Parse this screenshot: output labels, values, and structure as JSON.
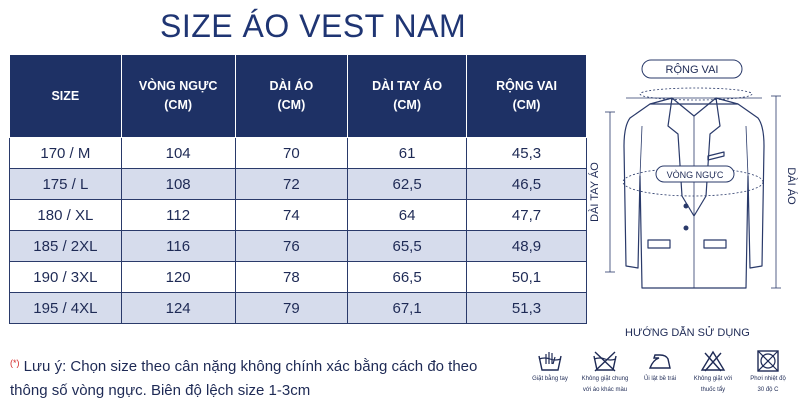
{
  "title": "SIZE ÁO VEST NAM",
  "table": {
    "headers": [
      [
        "SIZE"
      ],
      [
        "VÒNG NGỰC",
        "(CM)"
      ],
      [
        "DÀI ÁO",
        "(CM)"
      ],
      [
        "DÀI TAY ÁO",
        "(CM)"
      ],
      [
        "RỘNG VAI",
        "(CM)"
      ]
    ],
    "rows": [
      [
        "170 / M",
        "104",
        "70",
        "61",
        "45,3"
      ],
      [
        "175 / L",
        "108",
        "72",
        "62,5",
        "46,5"
      ],
      [
        "180 / XL",
        "112",
        "74",
        "64",
        "47,7"
      ],
      [
        "185 / 2XL",
        "116",
        "76",
        "65,5",
        "48,9"
      ],
      [
        "190 / 3XL",
        "120",
        "78",
        "66,5",
        "50,1"
      ],
      [
        "195 / 4XL",
        "124",
        "79",
        "67,1",
        "51,3"
      ]
    ]
  },
  "figure": {
    "shoulder_label": "RỘNG VAI",
    "chest_label": "VÒNG NGỰC",
    "sleeve_label": "DÀI TAY ÁO",
    "length_label": "DÀI ÁO"
  },
  "note": {
    "marker": "(*)",
    "line1": "Lưu ý: Chọn size theo cân nặng không chính xác bằng cách đo theo",
    "line2": "thông số vòng ngực. Biên độ lệch size 1-3cm"
  },
  "care": {
    "title": "HƯỚNG DẪN SỬ DỤNG",
    "items": [
      {
        "icon": "hand-wash-icon",
        "line1": "Giặt bằng tay",
        "line2": ""
      },
      {
        "icon": "no-wash-with-others-icon",
        "line1": "Không giặt chung",
        "line2": "với áo khác màu"
      },
      {
        "icon": "iron-low-icon",
        "line1": "Ủi lật bề trái",
        "line2": ""
      },
      {
        "icon": "no-bleach-icon",
        "line1": "Không giặt với",
        "line2": "thuốc tẩy"
      },
      {
        "icon": "dry-shade-icon",
        "line1": "Phơi nhiệt độ",
        "line2": "30 độ C"
      }
    ]
  }
}
